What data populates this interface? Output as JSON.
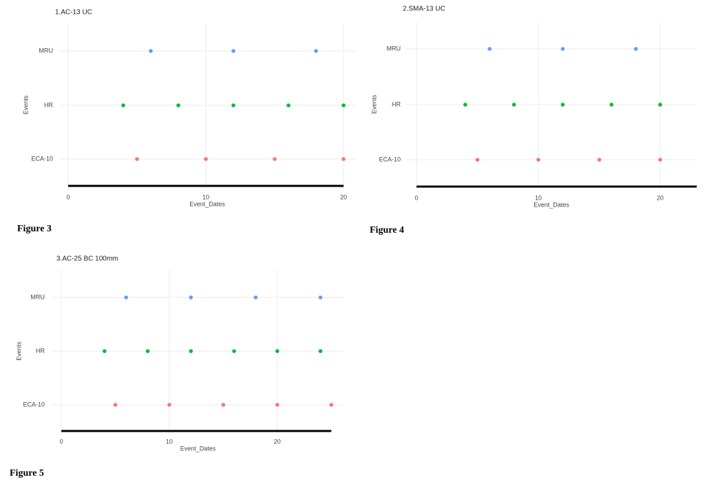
{
  "chart_data": [
    {
      "type": "dot",
      "title": "1.AC-13 UC",
      "xlabel": "Event_Dates",
      "ylabel": "Events",
      "caption": "Figure 3",
      "xlim": [
        -0.7,
        20.9
      ],
      "xticks": [
        0,
        10,
        20
      ],
      "grid": true,
      "segment": {
        "values": [
          0,
          20
        ],
        "color": "#000000"
      },
      "series": [
        {
          "name": "ECA-10",
          "color": "#f8766d",
          "values": [
            5,
            10,
            15,
            20
          ]
        },
        {
          "name": "HR",
          "color": "#00ba38",
          "values": [
            4,
            8,
            12,
            16,
            20
          ]
        },
        {
          "name": "MRU",
          "color": "#619cff",
          "values": [
            6,
            12,
            18
          ]
        }
      ]
    },
    {
      "type": "dot",
      "title": "2.SMA-13 UC",
      "xlabel": "Event_Dates",
      "ylabel": "Events",
      "caption": "Figure 4",
      "xlim": [
        -0.85,
        23
      ],
      "xticks": [
        0,
        10,
        20
      ],
      "grid": true,
      "segment": {
        "values": [
          0,
          23
        ],
        "color": "#000000"
      },
      "series": [
        {
          "name": "ECA-10",
          "color": "#f8766d",
          "values": [
            5,
            10,
            15,
            20
          ]
        },
        {
          "name": "HR",
          "color": "#00ba38",
          "values": [
            4,
            8,
            12,
            16,
            20
          ]
        },
        {
          "name": "MRU",
          "color": "#619cff",
          "values": [
            6,
            12,
            18
          ]
        }
      ]
    },
    {
      "type": "dot",
      "title": "3.AC-25 BC 100mm",
      "xlabel": "Event_Dates",
      "ylabel": "Events",
      "caption": "Figure 5",
      "xlim": [
        -0.9,
        26.2
      ],
      "xticks": [
        0,
        10,
        20
      ],
      "grid": true,
      "segment": {
        "values": [
          0,
          25
        ],
        "color": "#000000"
      },
      "series": [
        {
          "name": "ECA-10",
          "color": "#f8766d",
          "values": [
            5,
            10,
            15,
            20,
            25
          ]
        },
        {
          "name": "HR",
          "color": "#00ba38",
          "values": [
            4,
            8,
            12,
            16,
            20,
            24
          ]
        },
        {
          "name": "MRU",
          "color": "#619cff",
          "values": [
            6,
            12,
            18,
            24
          ]
        }
      ]
    }
  ]
}
